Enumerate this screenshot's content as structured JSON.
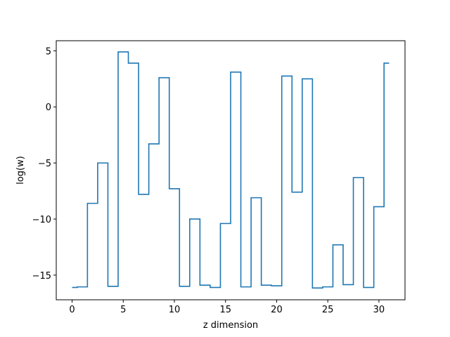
{
  "chart_data": {
    "type": "line",
    "drawstyle": "steps-mid",
    "title": "",
    "xlabel": "z dimension",
    "ylabel": "log(w)",
    "xlim": [
      -1.55,
      32.55
    ],
    "ylim": [
      -17.2,
      5.9
    ],
    "xticks": [
      0,
      5,
      10,
      15,
      20,
      25,
      30
    ],
    "yticks": [
      -15,
      -10,
      -5,
      0,
      5
    ],
    "xtick_labels": [
      "0",
      "5",
      "10",
      "15",
      "20",
      "25",
      "30"
    ],
    "ytick_labels": [
      "−15",
      "−10",
      "−5",
      "0",
      "5"
    ],
    "grid": false,
    "series": [
      {
        "color": "#1f77b4",
        "x": [
          0,
          1,
          2,
          3,
          4,
          5,
          6,
          7,
          8,
          9,
          10,
          11,
          12,
          13,
          14,
          15,
          16,
          17,
          18,
          19,
          20,
          21,
          22,
          23,
          24,
          25,
          26,
          27,
          28,
          29,
          30,
          31
        ],
        "y": [
          -16.1,
          -16.05,
          -8.6,
          -5.0,
          -16.0,
          4.9,
          3.9,
          -7.8,
          -3.3,
          2.6,
          -7.3,
          -16.0,
          -10.0,
          -15.9,
          -16.1,
          -10.4,
          3.1,
          -16.05,
          -8.1,
          -15.9,
          -15.95,
          2.75,
          -7.6,
          2.5,
          -16.15,
          -16.05,
          -12.3,
          -15.85,
          -6.3,
          -16.1,
          -8.9,
          3.9
        ]
      }
    ]
  }
}
